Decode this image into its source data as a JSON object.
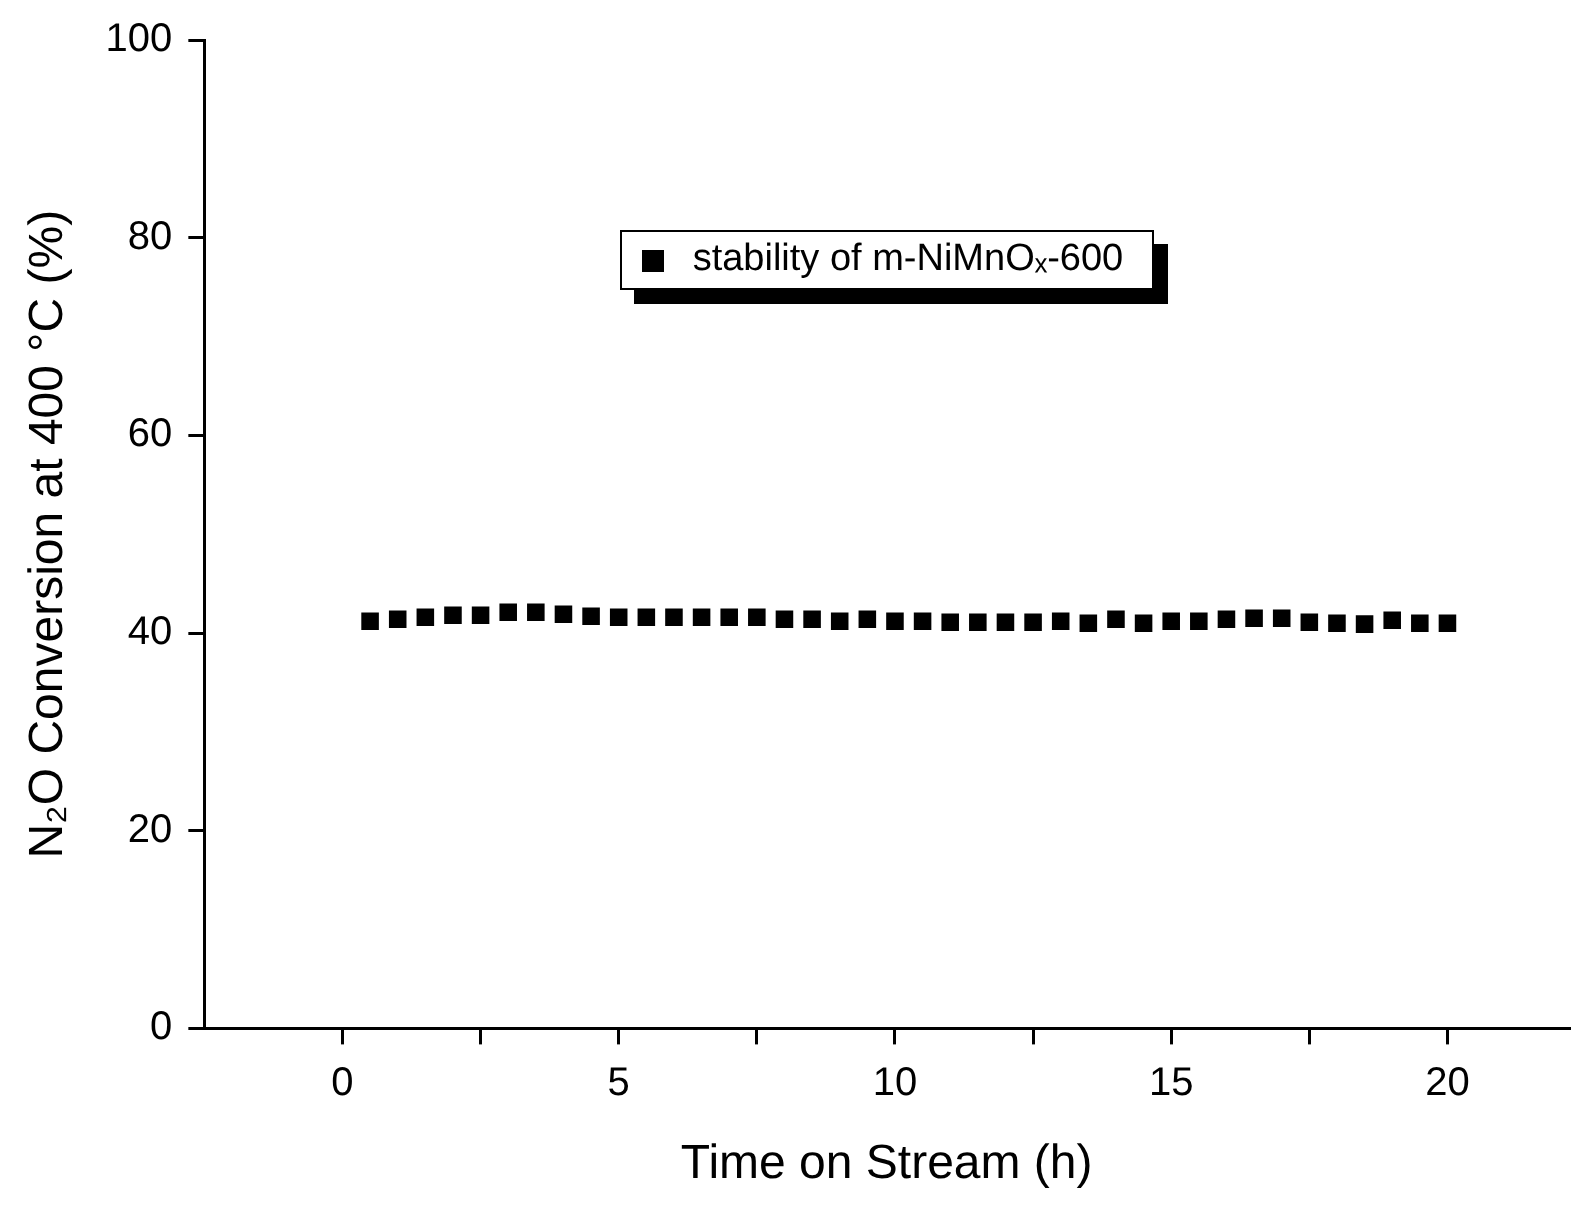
{
  "chart_data": {
    "type": "scatter",
    "xlabel": "Time on Stream (h)",
    "ylabel": "N₂O Conversion at 400 °C (%)",
    "x": [
      0.5,
      1,
      1.5,
      2,
      2.5,
      3,
      3.5,
      4,
      4.5,
      5,
      5.5,
      6,
      6.5,
      7,
      7.5,
      8,
      8.5,
      9,
      9.5,
      10,
      10.5,
      11,
      11.5,
      12,
      12.5,
      13,
      13.5,
      14,
      14.5,
      15,
      15.5,
      16,
      16.5,
      17,
      17.5,
      18,
      18.5,
      19,
      19.5,
      20
    ],
    "series": [
      {
        "name": "stability of m-NiMnOₓ-600",
        "color": "#000000",
        "values": [
          41.2,
          41.4,
          41.6,
          41.8,
          41.8,
          42.1,
          42.1,
          41.9,
          41.7,
          41.6,
          41.6,
          41.6,
          41.6,
          41.6,
          41.6,
          41.4,
          41.4,
          41.2,
          41.4,
          41.2,
          41.2,
          41.1,
          41.1,
          41.1,
          41.1,
          41.2,
          41.0,
          41.4,
          41.0,
          41.2,
          41.2,
          41.4,
          41.5,
          41.5,
          41.1,
          41.0,
          40.9,
          41.3,
          41.0,
          41.0
        ]
      }
    ],
    "xlim": [
      -2.5,
      22.2
    ],
    "ylim": [
      0,
      100
    ],
    "xticks": [
      0,
      {
        "value": 2.5,
        "label": null
      },
      5,
      {
        "value": 7.5,
        "label": null
      },
      10,
      {
        "value": 12.5,
        "label": null
      },
      15,
      {
        "value": 17.5,
        "label": null
      },
      20
    ],
    "yticks": [
      0,
      20,
      40,
      60,
      80,
      100
    ],
    "grid": false,
    "legend": "top",
    "marker": "square"
  }
}
